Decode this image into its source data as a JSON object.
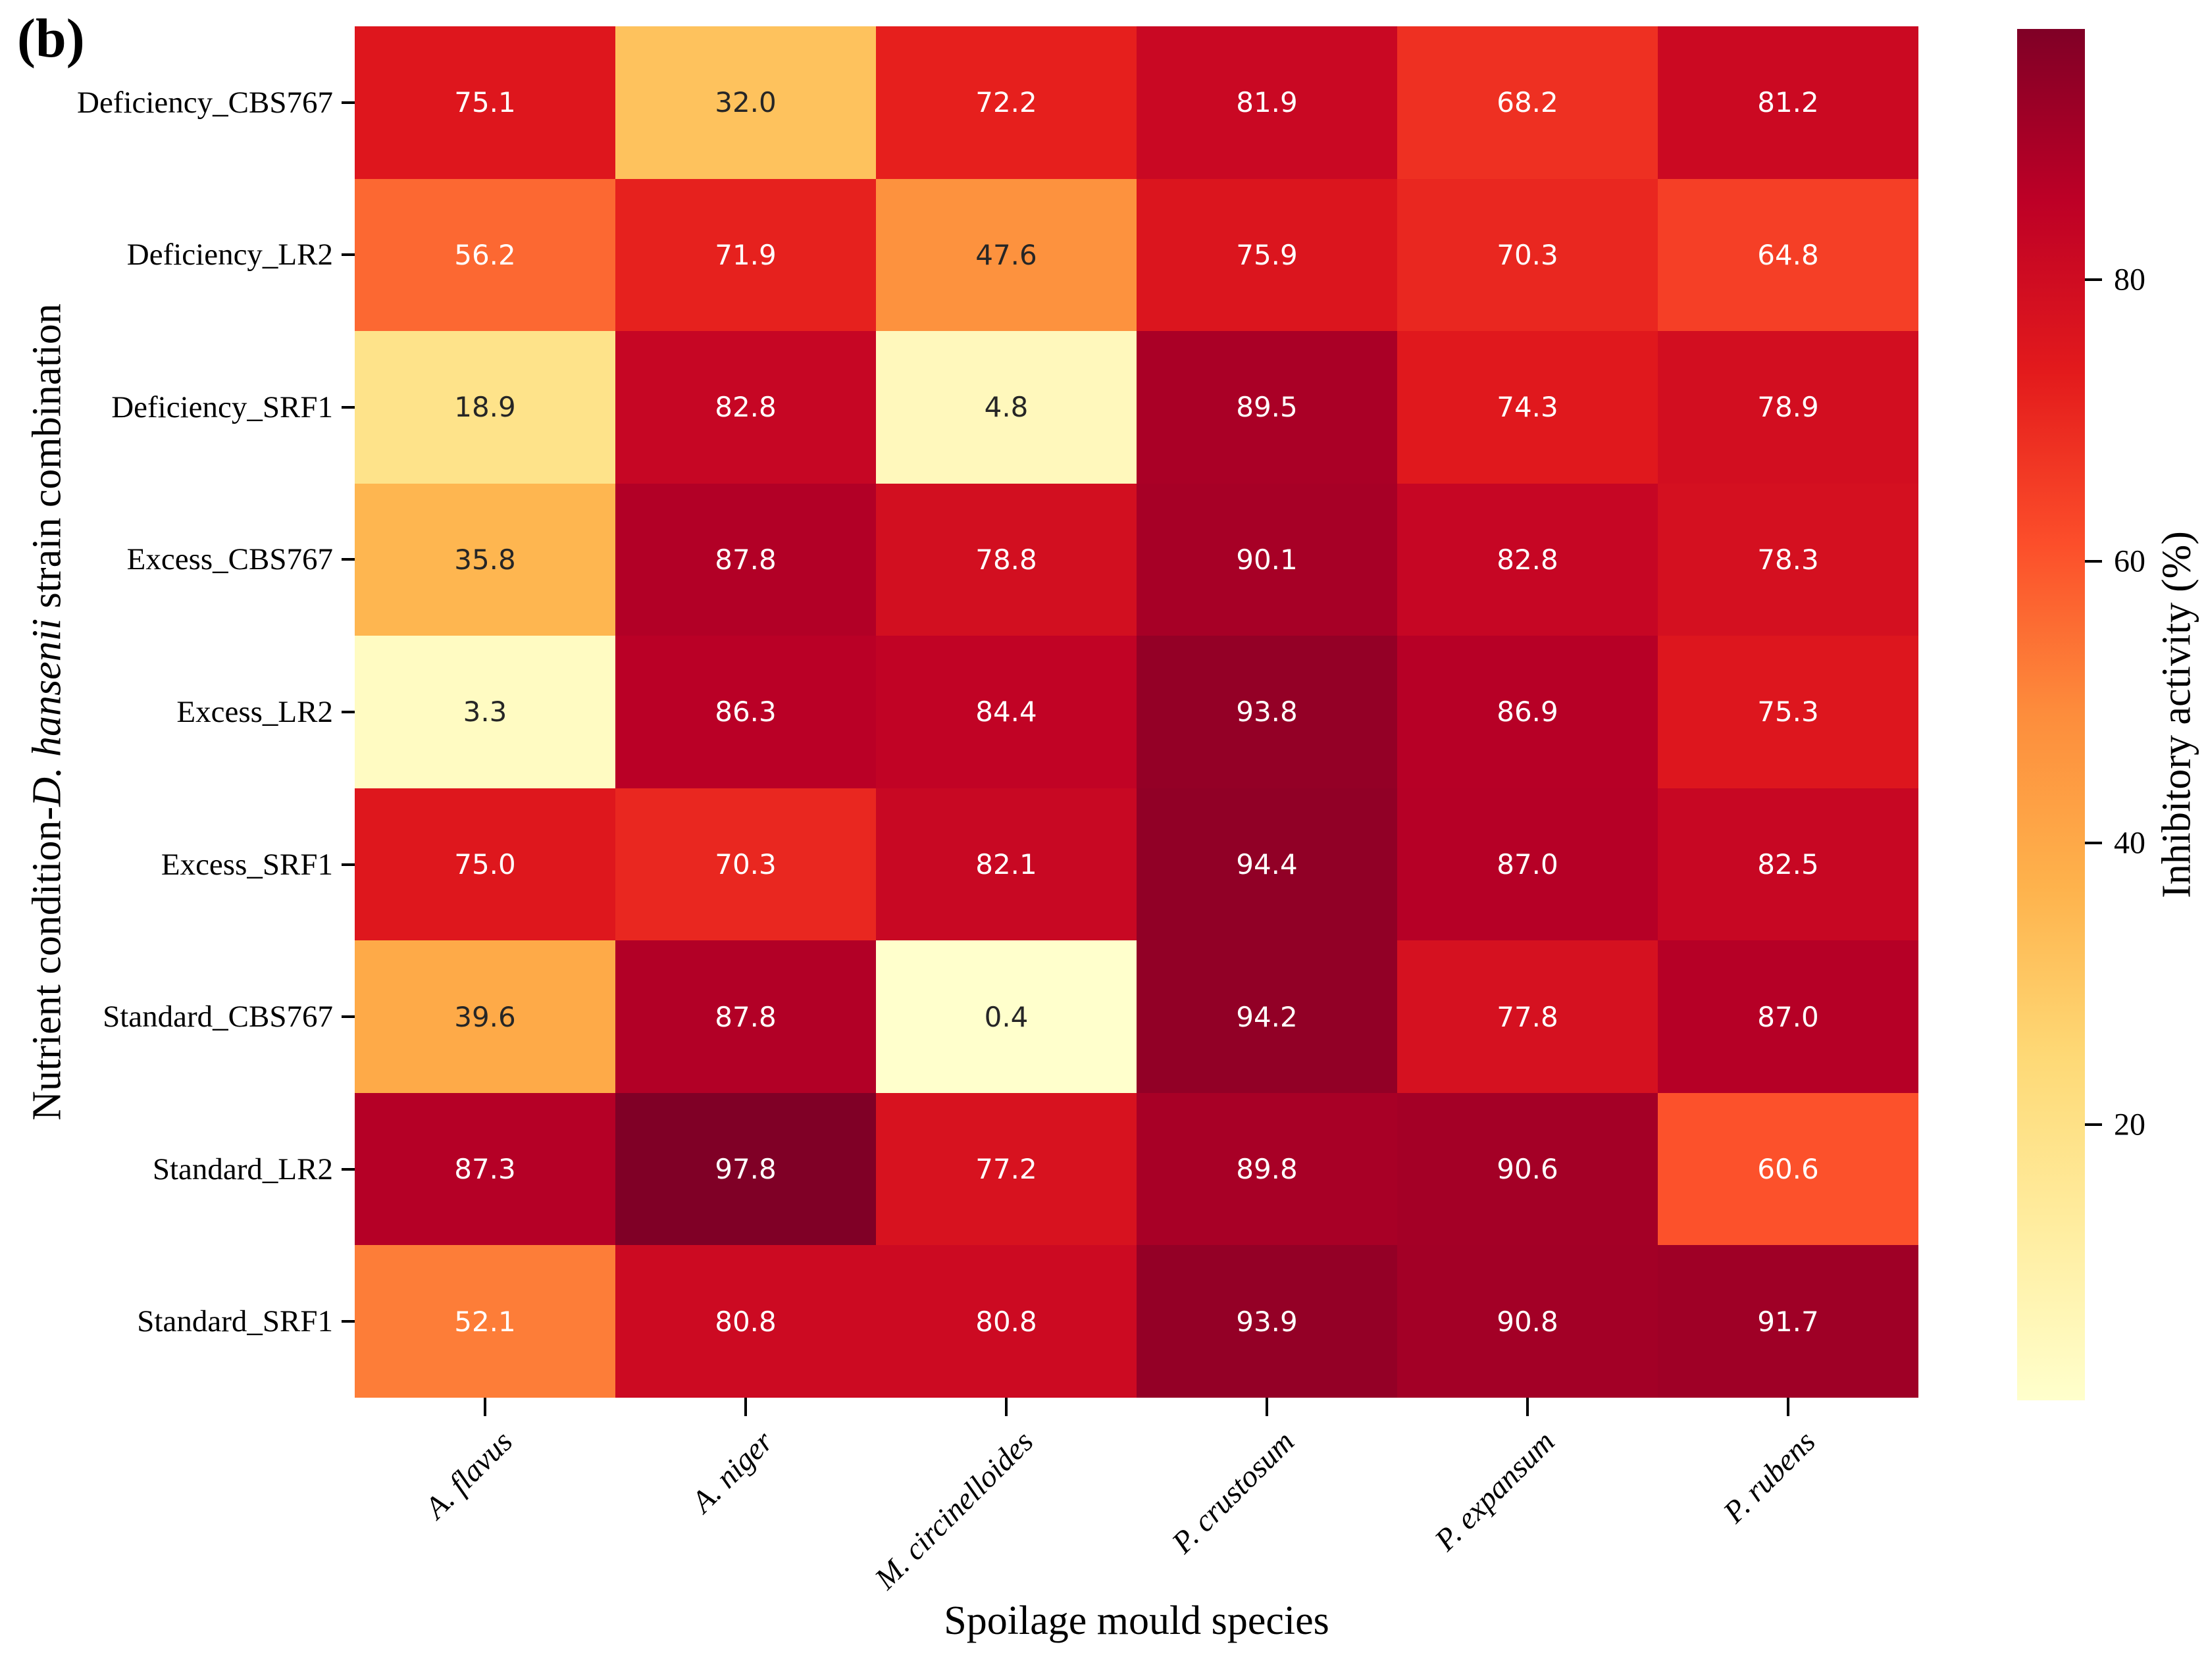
{
  "figure": {
    "panel_label": "(b)",
    "background_color": "#ffffff"
  },
  "chart_data": {
    "type": "heatmap",
    "panel_label": "(b)",
    "xlabel": "Spoilage mould species",
    "ylabel_prefix": "Nutrient condition-",
    "ylabel_italic": "D. hansenii",
    "ylabel_suffix": " strain combination",
    "columns": [
      "A. flavus",
      "A. niger",
      "M. circinelloides",
      "P. crustosum",
      "P. expansum",
      "P. rubens"
    ],
    "rows": [
      "Deficiency_CBS767",
      "Deficiency_LR2",
      "Deficiency_SRF1",
      "Excess_CBS767",
      "Excess_LR2",
      "Excess_SRF1",
      "Standard_CBS767",
      "Standard_LR2",
      "Standard_SRF1"
    ],
    "values": [
      [
        75.1,
        32.0,
        72.2,
        81.9,
        68.2,
        81.2
      ],
      [
        56.2,
        71.9,
        47.6,
        75.9,
        70.3,
        64.8
      ],
      [
        18.9,
        82.8,
        4.8,
        89.5,
        74.3,
        78.9
      ],
      [
        35.8,
        87.8,
        78.8,
        90.1,
        82.8,
        78.3
      ],
      [
        3.3,
        86.3,
        84.4,
        93.8,
        86.9,
        75.3
      ],
      [
        75.0,
        70.3,
        82.1,
        94.4,
        87.0,
        82.5
      ],
      [
        39.6,
        87.8,
        0.4,
        94.2,
        77.8,
        87.0
      ],
      [
        87.3,
        97.8,
        77.2,
        89.8,
        90.6,
        60.6
      ],
      [
        52.1,
        80.8,
        80.8,
        93.9,
        90.8,
        91.7
      ]
    ],
    "value_decimals": 1,
    "grid": false,
    "legend_position": "right-colorbar",
    "colorbar": {
      "label": "Inhibitory activity (%)",
      "ticks": [
        20,
        40,
        60,
        80
      ],
      "vmin": 0.4,
      "vmax": 97.8,
      "colormap_name": "YlOrRd",
      "colormap_colors": [
        "#ffffcc",
        "#ffeda0",
        "#fed976",
        "#feb24c",
        "#fd8d3c",
        "#fc4e2a",
        "#e31a1c",
        "#bd0026",
        "#800026"
      ]
    },
    "annotation_text_dark": "#262626",
    "annotation_text_light": "#ffffff",
    "tick_color": "#000000"
  }
}
